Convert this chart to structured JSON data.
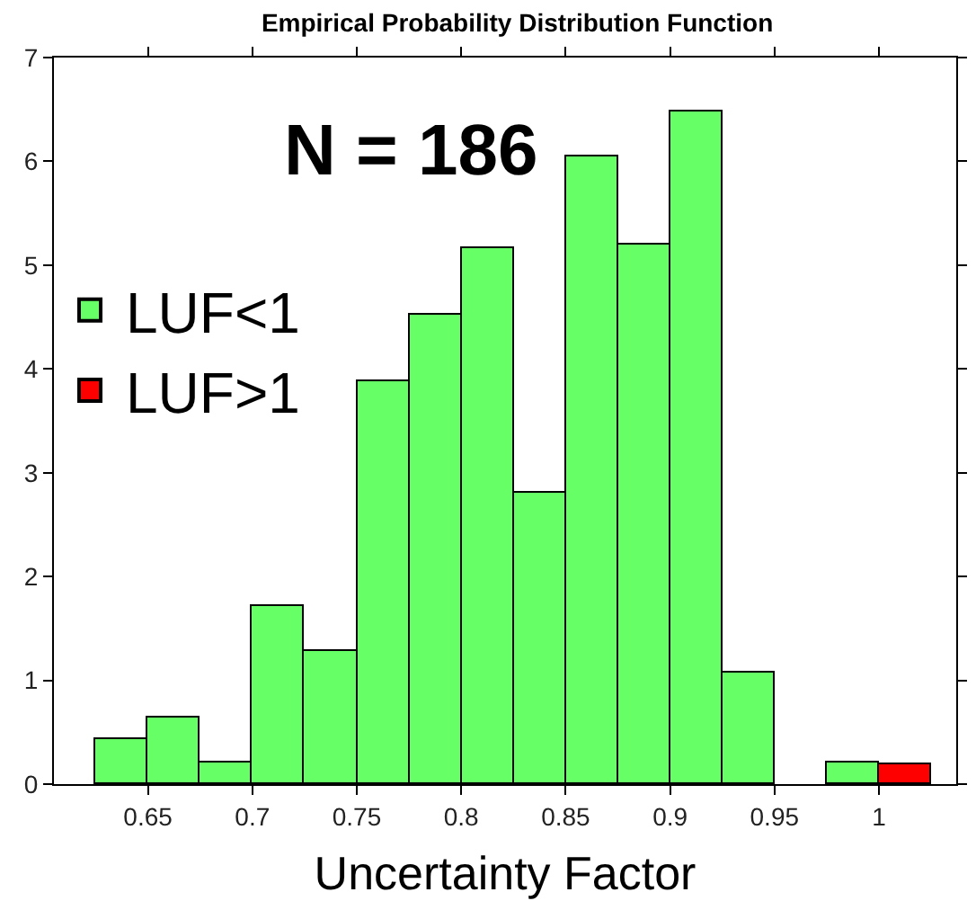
{
  "chart_data": {
    "type": "histogram",
    "title": "Empirical Probability Distribution Function",
    "xlabel": "Uncertainty Factor",
    "bins": [
      0.625,
      0.65,
      0.675,
      0.7,
      0.725,
      0.75,
      0.775,
      0.8,
      0.825,
      0.85,
      0.875,
      0.9,
      0.925,
      0.95,
      0.975,
      1.0,
      1.025
    ],
    "series": [
      {
        "name": "LUF<1",
        "color": "#66ff66",
        "values": [
          0.43,
          0.64,
          0.2,
          1.72,
          1.29,
          3.88,
          4.53,
          5.17,
          2.81,
          6.05,
          5.19,
          6.48,
          1.07,
          0,
          0.21,
          null
        ]
      },
      {
        "name": "LUF>1",
        "color": "#ff0000",
        "values": [
          null,
          null,
          null,
          null,
          null,
          null,
          null,
          null,
          null,
          null,
          null,
          null,
          null,
          null,
          null,
          0.19
        ]
      }
    ],
    "xlim": [
      0.605,
      1.037
    ],
    "xticks": [
      0.65,
      0.7,
      0.75,
      0.8,
      0.85,
      0.9,
      0.95,
      1
    ],
    "ylim": [
      0,
      7
    ],
    "yticks": [
      0,
      1,
      2,
      3,
      4,
      5,
      6,
      7
    ],
    "annotations": [
      "N = 186"
    ],
    "legend": "left"
  }
}
